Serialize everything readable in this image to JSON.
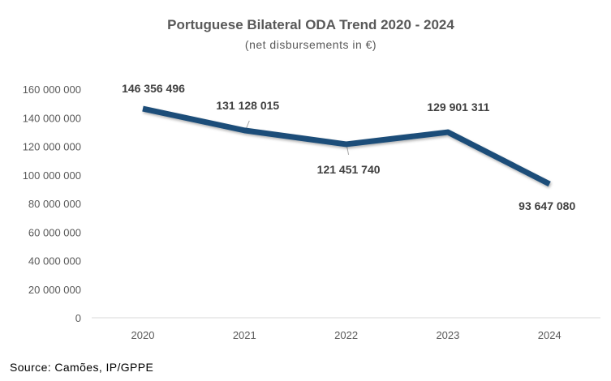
{
  "chart_data": {
    "type": "line",
    "title": "Portuguese Bilateral ODA Trend 2020 - 2024",
    "subtitle": "(net disbursements in €)",
    "categories": [
      "2020",
      "2021",
      "2022",
      "2023",
      "2024"
    ],
    "values": [
      146356496,
      131128015,
      121451740,
      129901311,
      93647080
    ],
    "data_labels": [
      "146 356 496",
      "131 128 015",
      "121 451 740",
      "129 901 311",
      "93 647 080"
    ],
    "ylim": [
      0,
      160000000
    ],
    "yticks": [
      0,
      20000000,
      40000000,
      60000000,
      80000000,
      100000000,
      120000000,
      140000000,
      160000000
    ],
    "ytick_labels": [
      "0",
      "20 000 000",
      "40 000 000",
      "60 000 000",
      "80 000 000",
      "100 000 000",
      "120 000 000",
      "140 000 000",
      "160 000 000"
    ],
    "xlabel": "",
    "ylabel": "",
    "grid": false,
    "legend": "none",
    "line_color": "#1F4E79"
  },
  "source": "Source: Camões, IP/GPPE"
}
